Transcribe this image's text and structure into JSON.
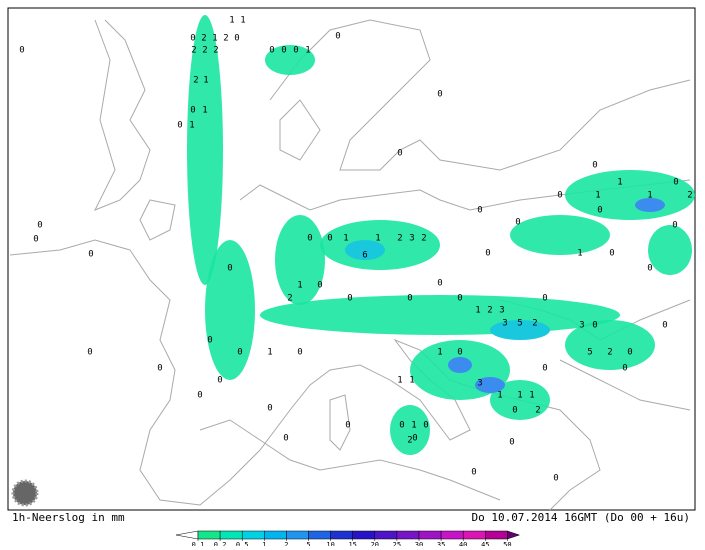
{
  "footer_left": "1h-Neerslog in mm",
  "footer_right": "Do 10.07.2014 16GMT (Do 00 + 16u)",
  "legend": {
    "levels": [
      0.1,
      0.2,
      0.5,
      1,
      2,
      5,
      10,
      15,
      20,
      25,
      30,
      35,
      40,
      45,
      50
    ],
    "colors": [
      "#14e68c",
      "#00e6b4",
      "#00d2e6",
      "#00b4f0",
      "#1e96f0",
      "#1e64e6",
      "#1e32d2",
      "#2814c8",
      "#5014c8",
      "#7814c8",
      "#a014c8",
      "#c814c8",
      "#dc14b4",
      "#b40096"
    ],
    "under_color": "#ffffff",
    "over_color": "#64006e"
  },
  "stations": [
    "0",
    "1",
    "1",
    "0",
    "2",
    "1",
    "2",
    "0",
    "2",
    "2",
    "2",
    "0",
    "0",
    "0",
    "1",
    "0",
    "2",
    "1",
    "0",
    "0",
    "1",
    "0",
    "1",
    "0",
    "0",
    "1",
    "0",
    "0",
    "1",
    "1",
    "2",
    "0",
    "0",
    "0",
    "0",
    "0",
    "0",
    "0",
    "0",
    "0",
    "1",
    "1",
    "2",
    "3",
    "2",
    "6",
    "0",
    "1",
    "0",
    "0",
    "0",
    "1",
    "0",
    "0",
    "2",
    "0",
    "0",
    "0",
    "0",
    "1",
    "2",
    "3",
    "3",
    "5",
    "2",
    "3",
    "0",
    "0",
    "0",
    "0",
    "0",
    "1",
    "0",
    "1",
    "0",
    "5",
    "2",
    "0",
    "0",
    "0",
    "0",
    "0",
    "1",
    "1",
    "3",
    "0",
    "0",
    "1",
    "1",
    "1",
    "0",
    "2",
    "0",
    "1",
    "0",
    "0",
    "0",
    "0",
    "0",
    "0",
    "0",
    "2"
  ]
}
